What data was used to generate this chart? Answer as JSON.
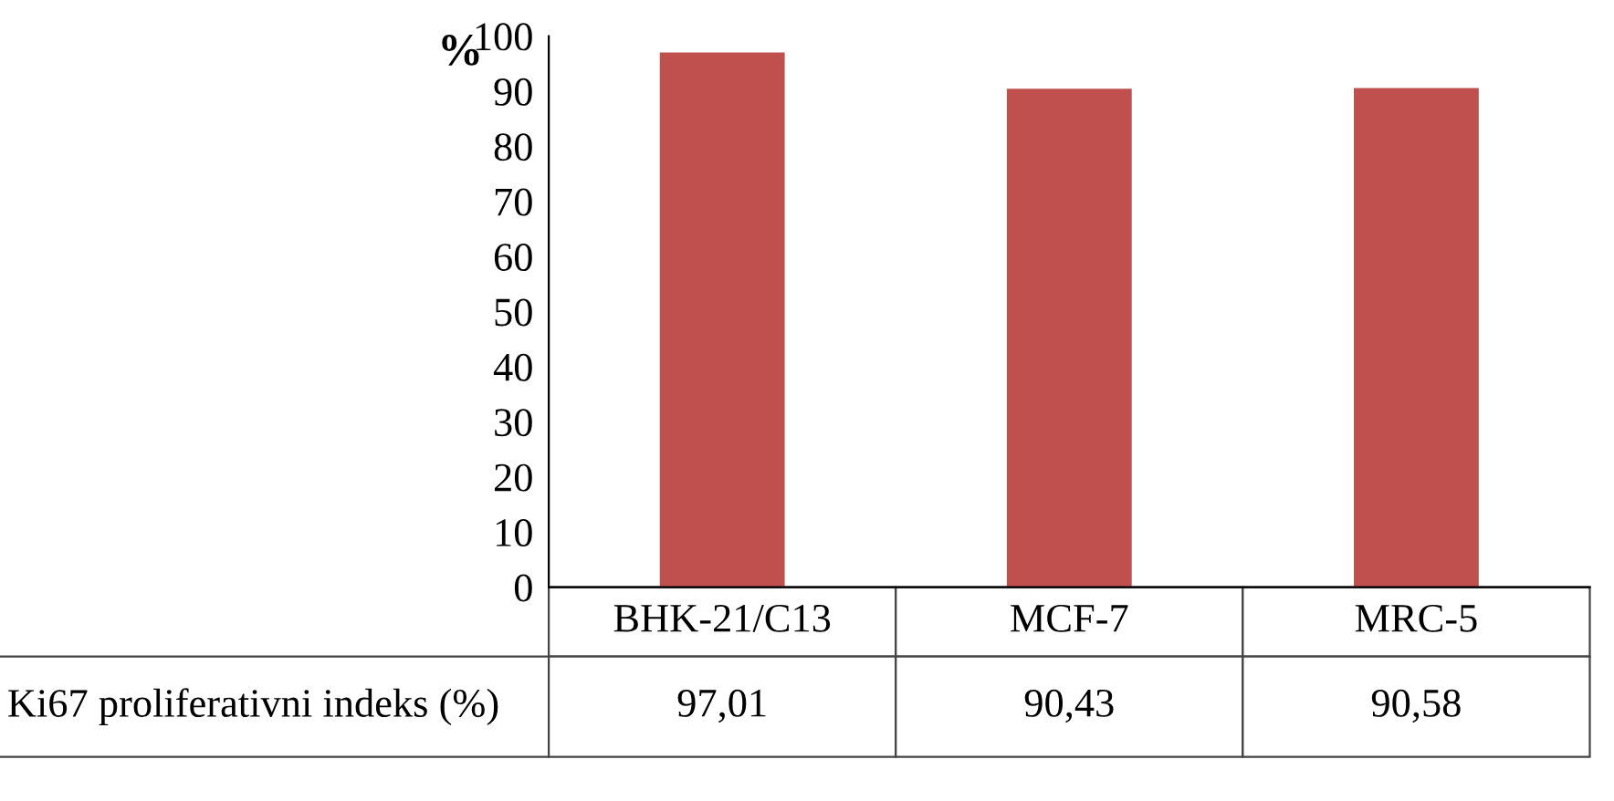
{
  "chart_data": {
    "type": "bar",
    "ylabel": "%",
    "categories": [
      "BHK-21/C13",
      "MCF-7",
      "MRC-5"
    ],
    "series": [
      {
        "name": "Ki67 proliferativni indeks (%)",
        "color": "#c0504d",
        "values": [
          97.01,
          90.43,
          90.58
        ],
        "value_labels": [
          "97,01",
          "90,43",
          "90,58"
        ]
      }
    ],
    "ylim": [
      0,
      100
    ],
    "yticks": [
      0,
      10,
      20,
      30,
      40,
      50,
      60,
      70,
      80,
      90,
      100
    ],
    "grid": false
  }
}
